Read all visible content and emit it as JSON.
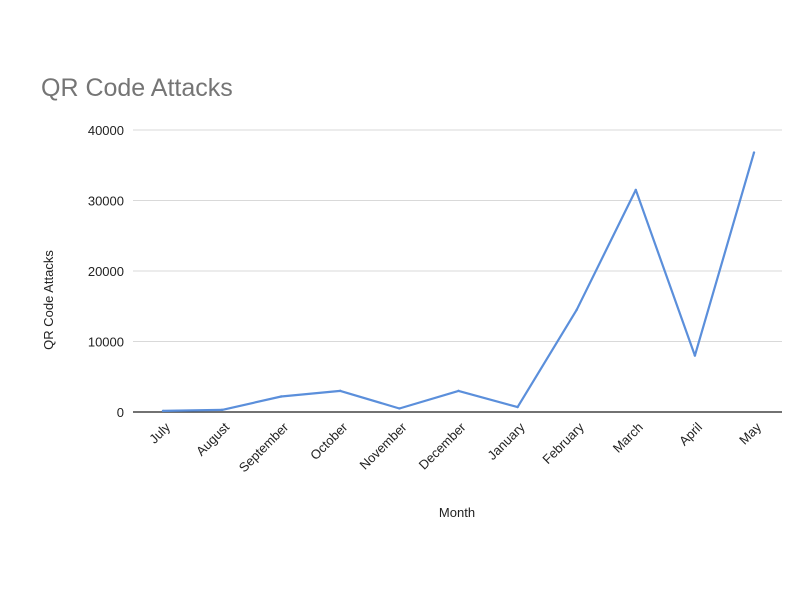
{
  "chart_data": {
    "type": "line",
    "title": "QR Code Attacks",
    "xlabel": "Month",
    "ylabel": "QR Code Attacks",
    "categories": [
      "July",
      "August",
      "September",
      "October",
      "November",
      "December",
      "January",
      "February",
      "March",
      "April",
      "May"
    ],
    "series": [
      {
        "values": [
          150,
          300,
          2200,
          3000,
          500,
          3000,
          700,
          14500,
          31500,
          8000,
          36800
        ]
      }
    ],
    "ylim": [
      0,
      40000
    ],
    "yticks": [
      "0",
      "10000",
      "20000",
      "30000",
      "40000"
    ],
    "grid": true,
    "line_color": "#5b8fdb",
    "grid_color": "#d9d9d9",
    "axis_color": "#444444"
  }
}
